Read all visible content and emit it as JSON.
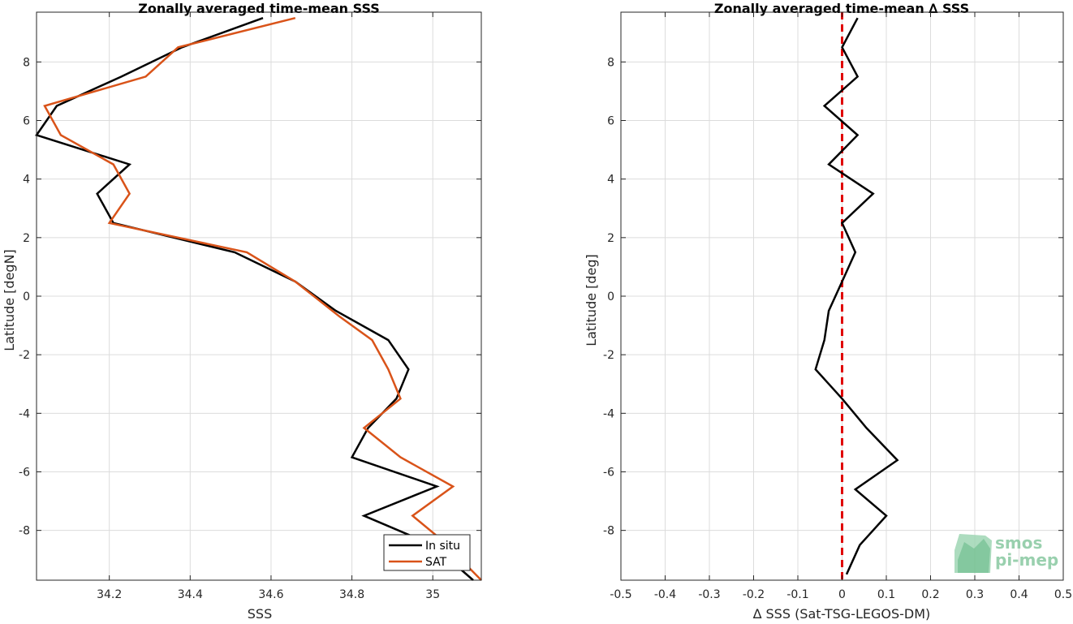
{
  "chart_data": [
    {
      "type": "line",
      "title": "Zonally averaged time-mean SSS",
      "xlabel": "SSS",
      "ylabel": "Latitude [degN]",
      "xlim": [
        34.02,
        35.12
      ],
      "ylim": [
        -9.7,
        9.7
      ],
      "xticks": [
        34.2,
        34.4,
        34.6,
        34.8,
        35.0
      ],
      "xtick_labels": [
        "34.2",
        "34.4",
        "34.6",
        "34.8",
        "35"
      ],
      "yticks": [
        -8,
        -6,
        -4,
        -2,
        0,
        2,
        4,
        6,
        8
      ],
      "ytick_labels": [
        "-8",
        "-6",
        "-4",
        "-2",
        "0",
        "2",
        "4",
        "6",
        "8"
      ],
      "grid": true,
      "legend_position": "bottom-right",
      "series": [
        {
          "name": "In situ",
          "color": "#000000",
          "points": [
            [
              34.58,
              9.5
            ],
            [
              34.38,
              8.5
            ],
            [
              34.23,
              7.5
            ],
            [
              34.07,
              6.5
            ],
            [
              34.02,
              5.5
            ],
            [
              34.25,
              4.5
            ],
            [
              34.17,
              3.5
            ],
            [
              34.21,
              2.5
            ],
            [
              34.51,
              1.5
            ],
            [
              34.66,
              0.5
            ],
            [
              34.76,
              -0.5
            ],
            [
              34.89,
              -1.5
            ],
            [
              34.94,
              -2.5
            ],
            [
              34.91,
              -3.5
            ],
            [
              34.84,
              -4.5
            ],
            [
              34.8,
              -5.5
            ],
            [
              35.01,
              -6.5
            ],
            [
              34.83,
              -7.5
            ],
            [
              35.0,
              -8.5
            ],
            [
              35.1,
              -9.7
            ]
          ]
        },
        {
          "name": "SAT",
          "color": "#d95319",
          "points": [
            [
              34.66,
              9.5
            ],
            [
              34.37,
              8.5
            ],
            [
              34.29,
              7.5
            ],
            [
              34.04,
              6.5
            ],
            [
              34.08,
              5.5
            ],
            [
              34.21,
              4.5
            ],
            [
              34.25,
              3.5
            ],
            [
              34.2,
              2.5
            ],
            [
              34.54,
              1.5
            ],
            [
              34.66,
              0.5
            ],
            [
              34.77,
              -0.7
            ],
            [
              34.85,
              -1.5
            ],
            [
              34.89,
              -2.5
            ],
            [
              34.92,
              -3.5
            ],
            [
              34.83,
              -4.5
            ],
            [
              34.92,
              -5.5
            ],
            [
              35.05,
              -6.5
            ],
            [
              34.95,
              -7.5
            ],
            [
              35.02,
              -8.3
            ],
            [
              35.12,
              -9.7
            ]
          ]
        }
      ]
    },
    {
      "type": "line",
      "title": "Zonally averaged time-mean ∆ SSS",
      "xlabel": "∆ SSS (Sat-TSG-LEGOS-DM)",
      "ylabel": "Latitude [deg]",
      "xlim": [
        -0.5,
        0.5
      ],
      "ylim": [
        -9.7,
        9.7
      ],
      "xticks": [
        -0.5,
        -0.4,
        -0.3,
        -0.2,
        -0.1,
        0,
        0.1,
        0.2,
        0.3,
        0.4,
        0.5
      ],
      "xtick_labels": [
        "-0.5",
        "-0.4",
        "-0.3",
        "-0.2",
        "-0.1",
        "0",
        "0.1",
        "0.2",
        "0.3",
        "0.4",
        "0.5"
      ],
      "yticks": [
        -8,
        -6,
        -4,
        -2,
        0,
        2,
        4,
        6,
        8
      ],
      "ytick_labels": [
        "-8",
        "-6",
        "-4",
        "-2",
        "0",
        "2",
        "4",
        "6",
        "8"
      ],
      "grid": true,
      "zero_line": {
        "x": 0,
        "color": "#e00000",
        "style": "dashed"
      },
      "series": [
        {
          "color": "#000000",
          "points": [
            [
              0.035,
              9.5
            ],
            [
              0.0,
              8.5
            ],
            [
              0.035,
              7.5
            ],
            [
              -0.04,
              6.5
            ],
            [
              0.035,
              5.5
            ],
            [
              -0.03,
              4.5
            ],
            [
              0.07,
              3.5
            ],
            [
              0.0,
              2.5
            ],
            [
              0.03,
              1.5
            ],
            [
              0.0,
              0.5
            ],
            [
              -0.03,
              -0.5
            ],
            [
              -0.04,
              -1.5
            ],
            [
              -0.06,
              -2.5
            ],
            [
              0.0,
              -3.5
            ],
            [
              0.055,
              -4.5
            ],
            [
              0.125,
              -5.6
            ],
            [
              0.03,
              -6.6
            ],
            [
              0.1,
              -7.5
            ],
            [
              0.04,
              -8.5
            ],
            [
              0.01,
              -9.5
            ]
          ]
        }
      ]
    }
  ],
  "watermark": {
    "line1": "smos",
    "line2": "pi-mep"
  }
}
